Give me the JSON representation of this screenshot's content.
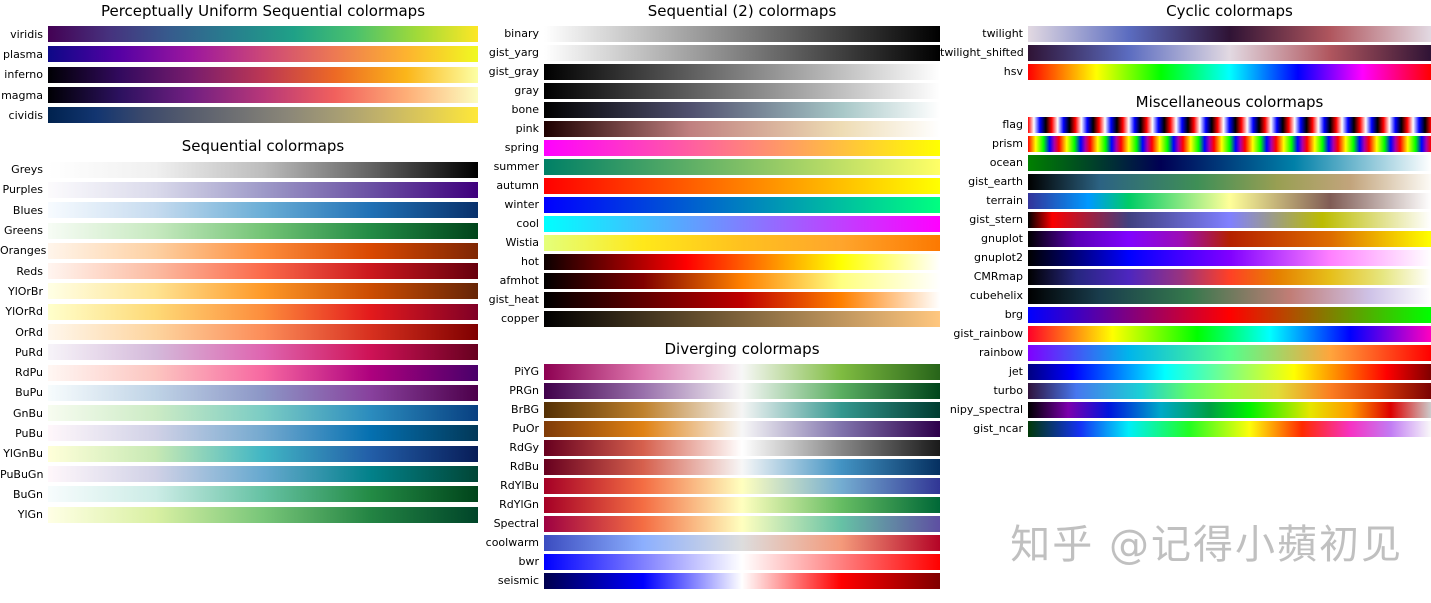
{
  "watermark": "知乎 @记得小蘋初见",
  "chart_data": {
    "type": "table",
    "description": "Matplotlib colormap reference figure; each row renders a named colormap as a horizontal left-to-right color gradient swatch",
    "columns": [
      {
        "sections": [
          {
            "title": "Perceptually Uniform Sequential colormaps",
            "items": [
              {
                "name": "viridis",
                "stops": [
                  "#440154",
                  "#46327e",
                  "#365c8d",
                  "#277f8e",
                  "#1fa187",
                  "#4ac16d",
                  "#a0da39",
                  "#fde725"
                ]
              },
              {
                "name": "plasma",
                "stops": [
                  "#0d0887",
                  "#5601a4",
                  "#9c179e",
                  "#cc4778",
                  "#ed7953",
                  "#fdb32f",
                  "#f0f921"
                ]
              },
              {
                "name": "inferno",
                "stops": [
                  "#000004",
                  "#320a5e",
                  "#781c6d",
                  "#bc3754",
                  "#ed6925",
                  "#fbb61a",
                  "#fcffa4"
                ]
              },
              {
                "name": "magma",
                "stops": [
                  "#000004",
                  "#2c115f",
                  "#721f81",
                  "#b73779",
                  "#f1605d",
                  "#feae77",
                  "#fcfdbf"
                ]
              },
              {
                "name": "cividis",
                "stops": [
                  "#00224e",
                  "#123570",
                  "#3b496c",
                  "#575d6d",
                  "#707173",
                  "#8a8678",
                  "#a59c74",
                  "#c3b369",
                  "#e1cc55",
                  "#fee838"
                ]
              }
            ]
          },
          {
            "title": "Sequential colormaps",
            "items": [
              {
                "name": "Greys",
                "stops": [
                  "#ffffff",
                  "#f0f0f0",
                  "#bdbdbd",
                  "#636363",
                  "#000000"
                ]
              },
              {
                "name": "Purples",
                "stops": [
                  "#fcfbfd",
                  "#dadaeb",
                  "#9e9ac8",
                  "#6a51a3",
                  "#3f007d"
                ]
              },
              {
                "name": "Blues",
                "stops": [
                  "#f7fbff",
                  "#c6dbef",
                  "#6baed6",
                  "#2171b5",
                  "#08306b"
                ]
              },
              {
                "name": "Greens",
                "stops": [
                  "#f7fcf5",
                  "#c7e9c0",
                  "#74c476",
                  "#238b45",
                  "#00441b"
                ]
              },
              {
                "name": "Oranges",
                "stops": [
                  "#fff5eb",
                  "#fdd0a2",
                  "#fd8d3c",
                  "#d94801",
                  "#7f2704"
                ]
              },
              {
                "name": "Reds",
                "stops": [
                  "#fff5f0",
                  "#fcbba1",
                  "#fb6a4a",
                  "#cb181d",
                  "#67000d"
                ]
              },
              {
                "name": "YlOrBr",
                "stops": [
                  "#ffffe5",
                  "#fee391",
                  "#fe9929",
                  "#cc4c02",
                  "#662506"
                ]
              },
              {
                "name": "YlOrRd",
                "stops": [
                  "#ffffcc",
                  "#fed976",
                  "#fd8d3c",
                  "#e31a1c",
                  "#800026"
                ]
              },
              {
                "name": "OrRd",
                "stops": [
                  "#fff7ec",
                  "#fdd49e",
                  "#fc8d59",
                  "#d7301f",
                  "#7f0000"
                ]
              },
              {
                "name": "PuRd",
                "stops": [
                  "#f7f4f9",
                  "#d4b9da",
                  "#df65b0",
                  "#ce1256",
                  "#67001f"
                ]
              },
              {
                "name": "RdPu",
                "stops": [
                  "#fff7f3",
                  "#fcc5c0",
                  "#f768a1",
                  "#ae017e",
                  "#49006a"
                ]
              },
              {
                "name": "BuPu",
                "stops": [
                  "#f7fcfd",
                  "#bfd3e6",
                  "#8c96c6",
                  "#88419d",
                  "#4d004b"
                ]
              },
              {
                "name": "GnBu",
                "stops": [
                  "#f7fcf0",
                  "#ccebc5",
                  "#7bccc4",
                  "#2b8cbe",
                  "#084081"
                ]
              },
              {
                "name": "PuBu",
                "stops": [
                  "#fff7fb",
                  "#d0d1e6",
                  "#74a9cf",
                  "#0570b0",
                  "#023858"
                ]
              },
              {
                "name": "YlGnBu",
                "stops": [
                  "#ffffd9",
                  "#c7e9b4",
                  "#41b6c4",
                  "#225ea8",
                  "#081d58"
                ]
              },
              {
                "name": "PuBuGn",
                "stops": [
                  "#fff7fb",
                  "#d0d1e6",
                  "#67a9cf",
                  "#02818a",
                  "#014636"
                ]
              },
              {
                "name": "BuGn",
                "stops": [
                  "#f7fcfd",
                  "#ccece6",
                  "#66c2a4",
                  "#238b45",
                  "#00441b"
                ]
              },
              {
                "name": "YlGn",
                "stops": [
                  "#ffffe5",
                  "#d9f0a3",
                  "#78c679",
                  "#238443",
                  "#004529"
                ]
              }
            ]
          }
        ]
      },
      {
        "sections": [
          {
            "title": "Sequential (2) colormaps",
            "items": [
              {
                "name": "binary",
                "stops": [
                  "#ffffff",
                  "#000000"
                ]
              },
              {
                "name": "gist_yarg",
                "stops": [
                  "#ffffff",
                  "#000000"
                ]
              },
              {
                "name": "gist_gray",
                "stops": [
                  "#000000",
                  "#ffffff"
                ]
              },
              {
                "name": "gray",
                "stops": [
                  "#000000",
                  "#ffffff"
                ]
              },
              {
                "name": "bone",
                "stops": [
                  "#000000",
                  "#50506e 37%",
                  "#a7c7c7 75%",
                  "#ffffff"
                ]
              },
              {
                "name": "pink",
                "stops": [
                  "#1e0000",
                  "#c08080 37%",
                  "#eedcb4 75%",
                  "#ffffff"
                ]
              },
              {
                "name": "spring",
                "stops": [
                  "#ff00ff",
                  "#ffff00"
                ]
              },
              {
                "name": "summer",
                "stops": [
                  "#008066",
                  "#ffff66"
                ]
              },
              {
                "name": "autumn",
                "stops": [
                  "#ff0000",
                  "#ffff00"
                ]
              },
              {
                "name": "winter",
                "stops": [
                  "#0000ff",
                  "#00ff80"
                ]
              },
              {
                "name": "cool",
                "stops": [
                  "#00ffff",
                  "#ff00ff"
                ]
              },
              {
                "name": "Wistia",
                "stops": [
                  "#e4ff7a",
                  "#ffe81a",
                  "#ffc11f",
                  "#ffa52c",
                  "#fc7901"
                ]
              },
              {
                "name": "hot",
                "stops": [
                  "#0b0000",
                  "#ff0000 36%",
                  "#ffff00 75%",
                  "#ffffff"
                ]
              },
              {
                "name": "afmhot",
                "stops": [
                  "#000000",
                  "#800000 25%",
                  "#ff8000 50%",
                  "#ffff80 75%",
                  "#ffffff"
                ]
              },
              {
                "name": "gist_heat",
                "stops": [
                  "#000000",
                  "#600000 25%",
                  "#bf0000 50%",
                  "#ff8000 75%",
                  "#ffffff"
                ]
              },
              {
                "name": "copper",
                "stops": [
                  "#000000",
                  "#66502f 40%",
                  "#ffc77f"
                ]
              }
            ]
          },
          {
            "title": "Diverging colormaps",
            "items": [
              {
                "name": "PiYG",
                "stops": [
                  "#8e0152",
                  "#de77ae",
                  "#f7f7f7",
                  "#7fbc41",
                  "#276419"
                ]
              },
              {
                "name": "PRGn",
                "stops": [
                  "#40004b",
                  "#9970ab",
                  "#f7f7f7",
                  "#5aae61",
                  "#00441b"
                ]
              },
              {
                "name": "BrBG",
                "stops": [
                  "#543005",
                  "#bf812d",
                  "#f5f5f5",
                  "#35978f",
                  "#003c30"
                ]
              },
              {
                "name": "PuOr",
                "stops": [
                  "#7f3b08",
                  "#e08214",
                  "#f7f7f7",
                  "#8073ac",
                  "#2d004b"
                ]
              },
              {
                "name": "RdGy",
                "stops": [
                  "#67001f",
                  "#d6604d",
                  "#ffffff",
                  "#878787",
                  "#1a1a1a"
                ]
              },
              {
                "name": "RdBu",
                "stops": [
                  "#67001f",
                  "#d6604d",
                  "#f7f7f7",
                  "#4393c3",
                  "#053061"
                ]
              },
              {
                "name": "RdYlBu",
                "stops": [
                  "#a50026",
                  "#f46d43",
                  "#ffffbf",
                  "#74add1",
                  "#313695"
                ]
              },
              {
                "name": "RdYlGn",
                "stops": [
                  "#a50026",
                  "#f46d43",
                  "#ffffbf",
                  "#66bd63",
                  "#006837"
                ]
              },
              {
                "name": "Spectral",
                "stops": [
                  "#9e0142",
                  "#f46d43",
                  "#ffffbf",
                  "#66c2a5",
                  "#5e4fa2"
                ]
              },
              {
                "name": "coolwarm",
                "stops": [
                  "#3b4cc0",
                  "#8caffe",
                  "#dddddd",
                  "#f49a7b",
                  "#b40426"
                ]
              },
              {
                "name": "bwr",
                "stops": [
                  "#0000ff",
                  "#ffffff",
                  "#ff0000"
                ]
              },
              {
                "name": "seismic",
                "stops": [
                  "#00004d",
                  "#0000ff 25%",
                  "#ffffff 50%",
                  "#ff0000 75%",
                  "#800000"
                ]
              }
            ]
          }
        ]
      },
      {
        "sections": [
          {
            "title": "Cyclic colormaps",
            "items": [
              {
                "name": "twilight",
                "stops": [
                  "#e2d9e2",
                  "#5b6cc0 25%",
                  "#2f1335 50%",
                  "#b0565e 75%",
                  "#e2d9e2"
                ]
              },
              {
                "name": "twilight_shifted",
                "stops": [
                  "#2f1335",
                  "#5b6cc0 25%",
                  "#e2d9e2 50%",
                  "#b0565e 75%",
                  "#2f1335"
                ]
              },
              {
                "name": "hsv",
                "stops": [
                  "#ff0000",
                  "#ffff00 17%",
                  "#00ff00 33%",
                  "#00ffff 50%",
                  "#0000ff 67%",
                  "#ff00ff 83%",
                  "#ff0000"
                ]
              }
            ]
          },
          {
            "title": "Miscellaneous colormaps",
            "items": [
              {
                "name": "flag",
                "repeat": 17,
                "stops": [
                  "#ff0000",
                  "#ffffff",
                  "#0000ff",
                  "#000000",
                  "#ff0000"
                ]
              },
              {
                "name": "prism",
                "repeat": 13,
                "stops": [
                  "#ff0000",
                  "#ffff00 25%",
                  "#00ff00 50%",
                  "#0000ff 70%",
                  "#aa00aa 85%",
                  "#ff0000"
                ]
              },
              {
                "name": "ocean",
                "stops": [
                  "#008000",
                  "#000054 33%",
                  "#0080a8 66%",
                  "#ffffff"
                ]
              },
              {
                "name": "gist_earth",
                "stops": [
                  "#000000",
                  "#2c6383 18%",
                  "#3f8f56 42%",
                  "#999f53 62%",
                  "#c2a47c 80%",
                  "#fdfbf6"
                ]
              },
              {
                "name": "terrain",
                "stops": [
                  "#333399",
                  "#0099ff 15%",
                  "#00cc66 25%",
                  "#ffff99 50%",
                  "#805c55 75%",
                  "#ffffff"
                ]
              },
              {
                "name": "gist_stern",
                "stops": [
                  "#000000",
                  "#fa0000 6%",
                  "#404080 25%",
                  "#8080ff 50%",
                  "#bcbc00 73%",
                  "#ffffff"
                ]
              },
              {
                "name": "gnuplot",
                "stops": [
                  "#000000",
                  "#5a00b4 12%",
                  "#8004ff 25%",
                  "#9c0db4 38%",
                  "#b42000 50%",
                  "#dd6b00 75%",
                  "#ffff00"
                ]
              },
              {
                "name": "gnuplot2",
                "stops": [
                  "#000000",
                  "#0000ff 25%",
                  "#8000ff 50%",
                  "#ff80ff 75%",
                  "#ffffff"
                ]
              },
              {
                "name": "CMRmap",
                "stops": [
                  "#000000",
                  "#26267f 12%",
                  "#4d26bf 25%",
                  "#99337f 38%",
                  "#ff4026 50%",
                  "#e68000 62%",
                  "#e6bf1a 75%",
                  "#e6e680 88%",
                  "#ffffff"
                ]
              },
              {
                "name": "cubehelix",
                "stops": [
                  "#000000",
                  "#193d4d 18%",
                  "#35784c 40%",
                  "#c17d76 65%",
                  "#cfc3e8 85%",
                  "#ffffff"
                ]
              },
              {
                "name": "brg",
                "stops": [
                  "#0000ff",
                  "#ff0000 50%",
                  "#00ff00"
                ]
              },
              {
                "name": "gist_rainbow",
                "stops": [
                  "#ff0029",
                  "#ffff00 21%",
                  "#00ff00 42%",
                  "#00ffff 60%",
                  "#0000ff 80%",
                  "#ff00bf"
                ]
              },
              {
                "name": "rainbow",
                "stops": [
                  "#8000ff",
                  "#00b5eb 25%",
                  "#54ff8c 50%",
                  "#ffa53c 75%",
                  "#ff0000"
                ]
              },
              {
                "name": "jet",
                "stops": [
                  "#000080",
                  "#0000ff 11%",
                  "#00ffff 34%",
                  "#80ff80 50%",
                  "#ffff00 66%",
                  "#ff0000 89%",
                  "#800000"
                ]
              },
              {
                "name": "turbo",
                "stops": [
                  "#30123b",
                  "#4777ef 12%",
                  "#1bd0d5 28%",
                  "#62fb69 40%",
                  "#a2fc3c 50%",
                  "#e1dd37 62%",
                  "#fb7e21 75%",
                  "#d93806 87%",
                  "#7a0403"
                ]
              },
              {
                "name": "nipy_spectral",
                "stops": [
                  "#000000",
                  "#7c00ad 10%",
                  "#0014dd 20%",
                  "#00a9c8 33%",
                  "#00a044 45%",
                  "#00f200 55%",
                  "#e6e600 70%",
                  "#ff9900 80%",
                  "#dd0000 90%",
                  "#cccccc"
                ]
              },
              {
                "name": "gist_ncar",
                "stops": [
                  "#003806",
                  "#1432f5 13%",
                  "#00eef8 25%",
                  "#22fd22 40%",
                  "#fdfd0b 55%",
                  "#ff2a00 68%",
                  "#f633c3 80%",
                  "#c27cf3 90%",
                  "#f9f9f9"
                ]
              }
            ]
          }
        ]
      }
    ]
  }
}
